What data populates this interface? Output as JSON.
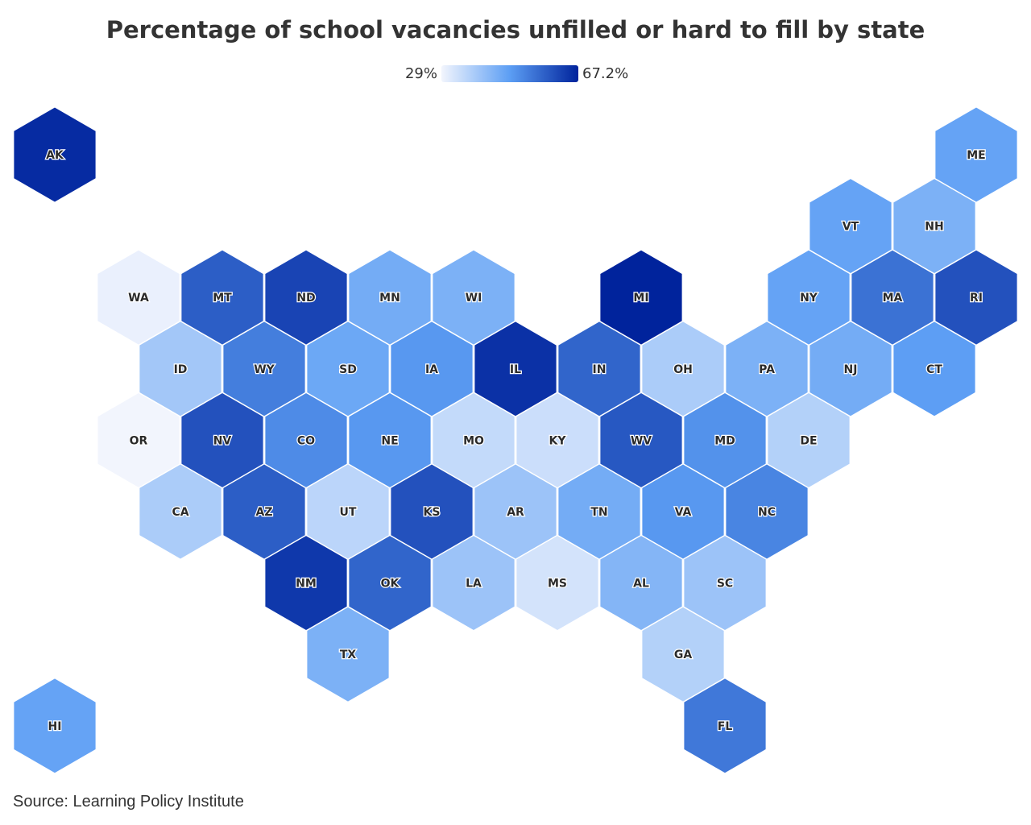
{
  "chart_data": {
    "type": "hexmap",
    "title": "Percentage of school vacancies unfilled or hard to fill by state",
    "scale": {
      "min": {
        "value": 29,
        "label": "29%"
      },
      "max": {
        "value": 67.2,
        "label": "67.2%"
      }
    },
    "colors": [
      "#f2f5fd",
      "#5c9ef4",
      "#00239c"
    ],
    "states": [
      {
        "name": "AK",
        "value": 66
      },
      {
        "name": "ME",
        "value": 47
      },
      {
        "name": "VT",
        "value": 47
      },
      {
        "name": "NH",
        "value": 44
      },
      {
        "name": "WA",
        "value": 30
      },
      {
        "name": "MT",
        "value": 58
      },
      {
        "name": "ND",
        "value": 62
      },
      {
        "name": "MN",
        "value": 45
      },
      {
        "name": "WI",
        "value": 44
      },
      {
        "name": "MI",
        "value": 67.2
      },
      {
        "name": "NY",
        "value": 47
      },
      {
        "name": "MA",
        "value": 55
      },
      {
        "name": "RI",
        "value": 60
      },
      {
        "name": "ID",
        "value": 39
      },
      {
        "name": "WY",
        "value": 53
      },
      {
        "name": "SD",
        "value": 46
      },
      {
        "name": "IA",
        "value": 49
      },
      {
        "name": "IL",
        "value": 65
      },
      {
        "name": "IN",
        "value": 57
      },
      {
        "name": "OH",
        "value": 38
      },
      {
        "name": "PA",
        "value": 44
      },
      {
        "name": "NJ",
        "value": 45
      },
      {
        "name": "CT",
        "value": 48
      },
      {
        "name": "OR",
        "value": 29
      },
      {
        "name": "NV",
        "value": 60
      },
      {
        "name": "CO",
        "value": 51
      },
      {
        "name": "NE",
        "value": 49
      },
      {
        "name": "MO",
        "value": 35
      },
      {
        "name": "KY",
        "value": 34
      },
      {
        "name": "WV",
        "value": 59
      },
      {
        "name": "MD",
        "value": 50
      },
      {
        "name": "DE",
        "value": 37
      },
      {
        "name": "CA",
        "value": 38
      },
      {
        "name": "AZ",
        "value": 58
      },
      {
        "name": "UT",
        "value": 36
      },
      {
        "name": "KS",
        "value": 60
      },
      {
        "name": "AR",
        "value": 40
      },
      {
        "name": "TN",
        "value": 45
      },
      {
        "name": "VA",
        "value": 49
      },
      {
        "name": "NC",
        "value": 52
      },
      {
        "name": "NM",
        "value": 64
      },
      {
        "name": "OK",
        "value": 57
      },
      {
        "name": "LA",
        "value": 40
      },
      {
        "name": "MS",
        "value": 33
      },
      {
        "name": "AL",
        "value": 43
      },
      {
        "name": "SC",
        "value": 40
      },
      {
        "name": "TX",
        "value": 44
      },
      {
        "name": "GA",
        "value": 37
      },
      {
        "name": "HI",
        "value": 47
      },
      {
        "name": "FL",
        "value": 54
      }
    ],
    "source": "Source: Learning Policy Institute"
  }
}
